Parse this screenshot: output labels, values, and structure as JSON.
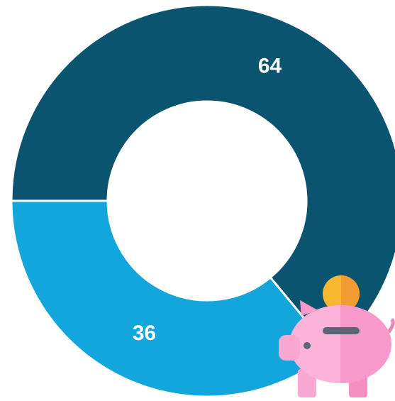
{
  "chart_data": {
    "type": "pie",
    "values": [
      64,
      36
    ],
    "colors": [
      "#0b5470",
      "#12a6dc"
    ]
  }
}
